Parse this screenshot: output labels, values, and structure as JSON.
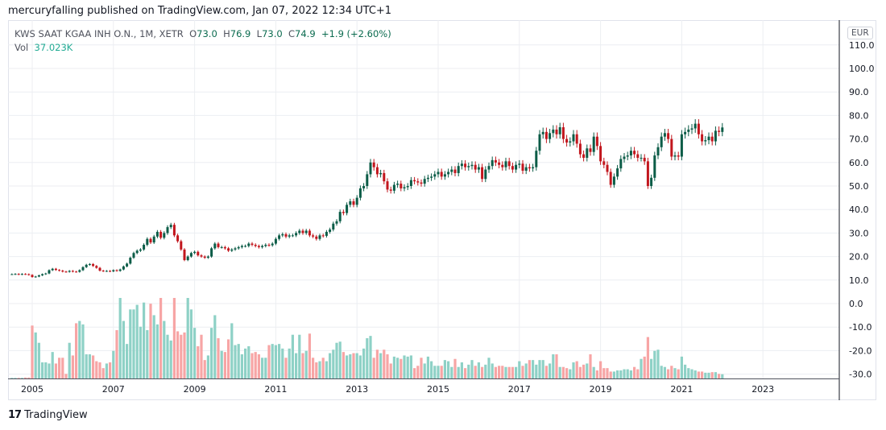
{
  "header": {
    "published": "mercuryfalling published on TradingView.com, Jan 07, 2022 12:34 UTC+1"
  },
  "legend": {
    "symbol": "KWS SAAT KGAA INH O.N., 1M, XETR",
    "open_label": "O",
    "open": "73.0",
    "high_label": "H",
    "high": "76.9",
    "low_label": "L",
    "low": "73.0",
    "close_label": "C",
    "close": "74.9",
    "change": "+1.9 (+2.60%)",
    "vol_label": "Vol",
    "vol": "37.023K"
  },
  "currency": "EUR",
  "footer": {
    "brand": "TradingView"
  },
  "colors": {
    "up": "#0b5c47",
    "down": "#c2161d",
    "vol_up": "#8ed1c6",
    "vol_down": "#f7a5a5",
    "grid": "#eceef2"
  },
  "chart_data": {
    "type": "candlestick",
    "interval": "1M",
    "start": "2004-07",
    "ylim": [
      -30,
      110
    ],
    "y_ticks": [
      "110.0",
      "100.0",
      "90.0",
      "80.0",
      "70.0",
      "60.0",
      "50.0",
      "40.0",
      "30.0",
      "20.0",
      "10.0",
      "0.0",
      "-10.0",
      "-20.0",
      "-30.0"
    ],
    "x_ticks": [
      "2005",
      "2007",
      "2009",
      "2011",
      "2013",
      "2015",
      "2017",
      "2019",
      "2021",
      "2023"
    ],
    "grid": true,
    "closes": [
      12.5,
      12.6,
      12.4,
      12.6,
      12.5,
      12.2,
      11.3,
      11.5,
      12.0,
      12.5,
      12.8,
      14.2,
      14.8,
      14.3,
      14.0,
      13.6,
      13.5,
      13.9,
      13.6,
      13.5,
      14.2,
      15.5,
      16.5,
      16.8,
      16.0,
      15.2,
      14.0,
      13.8,
      13.9,
      13.7,
      14.2,
      13.9,
      14.5,
      15.8,
      17.0,
      19.5,
      21.5,
      22.5,
      23.0,
      25.0,
      27.5,
      26.0,
      28.5,
      30.5,
      28.0,
      30.0,
      32.5,
      33.5,
      29.0,
      26.5,
      23.0,
      18.5,
      20.0,
      21.5,
      22.0,
      20.5,
      20.0,
      19.5,
      20.0,
      23.5,
      25.5,
      24.0,
      24.0,
      23.5,
      22.5,
      23.0,
      23.5,
      24.0,
      24.5,
      24.5,
      25.5,
      25.0,
      24.5,
      24.0,
      24.5,
      25.0,
      24.8,
      25.5,
      27.5,
      29.0,
      29.5,
      28.5,
      29.0,
      29.0,
      30.0,
      31.0,
      30.0,
      31.0,
      29.0,
      28.5,
      27.5,
      29.0,
      28.8,
      30.5,
      31.5,
      34.0,
      35.0,
      39.0,
      38.5,
      42.0,
      43.5,
      42.0,
      45.0,
      49.0,
      50.0,
      55.0,
      60.0,
      58.0,
      55.0,
      55.5,
      52.0,
      48.5,
      48.0,
      50.5,
      51.0,
      49.0,
      49.5,
      50.0,
      52.5,
      52.0,
      51.5,
      51.0,
      53.0,
      53.5,
      54.0,
      55.0,
      56.0,
      54.0,
      55.0,
      56.0,
      57.0,
      55.5,
      58.5,
      59.5,
      58.0,
      58.5,
      59.0,
      57.0,
      58.0,
      53.0,
      57.0,
      58.5,
      61.0,
      60.0,
      59.0,
      58.0,
      60.5,
      58.5,
      57.0,
      59.0,
      59.5,
      56.5,
      58.0,
      57.5,
      58.0,
      65.0,
      72.0,
      73.0,
      70.0,
      72.5,
      74.0,
      72.0,
      75.0,
      70.0,
      68.5,
      69.0,
      72.0,
      68.0,
      63.5,
      62.0,
      66.0,
      64.5,
      71.0,
      67.0,
      60.5,
      59.0,
      56.0,
      50.5,
      54.0,
      57.5,
      61.5,
      62.5,
      63.0,
      65.0,
      63.5,
      62.0,
      62.0,
      60.5,
      50.0,
      53.5,
      63.0,
      66.5,
      71.0,
      72.5,
      70.0,
      62.5,
      63.0,
      62.5,
      72.0,
      73.0,
      74.0,
      74.5,
      76.5,
      72.0,
      69.0,
      69.5,
      71.0,
      69.0,
      73.5,
      73.0,
      74.9
    ],
    "volumes_k": [
      5,
      5,
      5,
      5,
      8,
      8,
      460,
      400,
      310,
      140,
      140,
      130,
      230,
      130,
      180,
      180,
      40,
      310,
      200,
      480,
      500,
      470,
      210,
      210,
      200,
      150,
      140,
      90,
      130,
      140,
      240,
      420,
      700,
      500,
      300,
      600,
      600,
      640,
      450,
      660,
      420,
      650,
      550,
      470,
      700,
      500,
      380,
      330,
      700,
      410,
      380,
      400,
      700,
      600,
      440,
      280,
      380,
      160,
      200,
      440,
      550,
      350,
      240,
      230,
      340,
      480,
      290,
      300,
      210,
      260,
      280,
      220,
      230,
      210,
      180,
      180,
      290,
      300,
      290,
      300,
      260,
      180,
      260,
      380,
      220,
      380,
      220,
      240,
      390,
      180,
      140,
      150,
      180,
      150,
      220,
      250,
      310,
      320,
      230,
      200,
      210,
      220,
      220,
      200,
      260,
      350,
      370,
      180,
      250,
      220,
      250,
      210,
      130,
      190,
      180,
      170,
      200,
      190,
      200,
      90,
      110,
      180,
      130,
      190,
      150,
      110,
      110,
      110,
      160,
      150,
      100,
      170,
      100,
      140,
      90,
      120,
      160,
      110,
      140,
      100,
      120,
      180,
      130,
      100,
      110,
      110,
      100,
      100,
      100,
      100,
      150,
      110,
      130,
      160,
      160,
      120,
      160,
      160,
      110,
      130,
      210,
      210,
      100,
      100,
      90,
      80,
      140,
      150,
      100,
      120,
      130,
      210,
      100,
      70,
      150,
      90,
      90,
      60,
      60,
      70,
      70,
      80,
      80,
      70,
      100,
      80,
      170,
      190,
      360,
      170,
      240,
      250,
      110,
      100,
      80,
      110,
      90,
      80,
      190,
      120,
      90,
      80,
      70,
      60,
      60,
      50,
      50,
      55,
      55,
      40,
      37
    ]
  }
}
